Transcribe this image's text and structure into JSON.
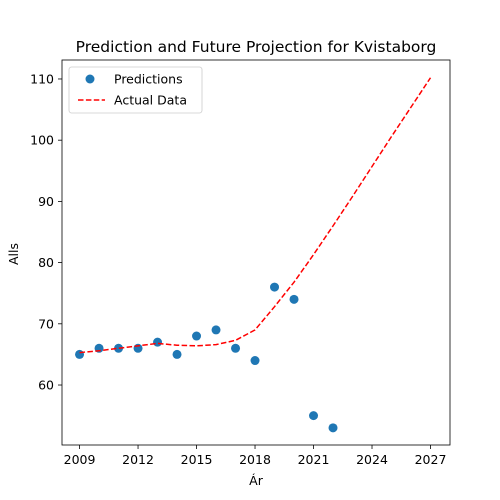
{
  "chart_data": {
    "type": "scatter",
    "title": "Prediction and Future Projection for Kvistaborg",
    "xlabel": "Ár",
    "ylabel": "Alls",
    "xlim": [
      2008.1,
      2028.0
    ],
    "ylim": [
      50.2,
      113.1
    ],
    "x_ticks": [
      2009,
      2012,
      2015,
      2018,
      2021,
      2024,
      2027
    ],
    "y_ticks": [
      60,
      70,
      80,
      90,
      100,
      110
    ],
    "grid": false,
    "legend_position": "upper-left",
    "series": [
      {
        "name": "Predictions",
        "type": "scatter",
        "color": "#1f77b4",
        "x": [
          2009,
          2010,
          2011,
          2012,
          2013,
          2014,
          2015,
          2016,
          2017,
          2018,
          2019,
          2020,
          2021,
          2022
        ],
        "y": [
          65,
          66,
          66,
          66,
          67,
          65,
          68,
          69,
          66,
          64,
          76,
          74,
          55,
          53
        ]
      },
      {
        "name": "Actual Data",
        "type": "line",
        "style": "dashed",
        "color": "#ff0000",
        "x": [
          2009,
          2010,
          2011,
          2012,
          2013,
          2014,
          2015,
          2016,
          2017,
          2018,
          2019,
          2020,
          2021,
          2022,
          2023,
          2024,
          2025,
          2026,
          2027
        ],
        "y": [
          65.3,
          65.6,
          66.0,
          66.4,
          66.8,
          66.5,
          66.4,
          66.6,
          67.3,
          69.0,
          72.8,
          76.8,
          81.3,
          86.0,
          90.8,
          95.7,
          100.6,
          105.4,
          110.2
        ]
      }
    ]
  }
}
